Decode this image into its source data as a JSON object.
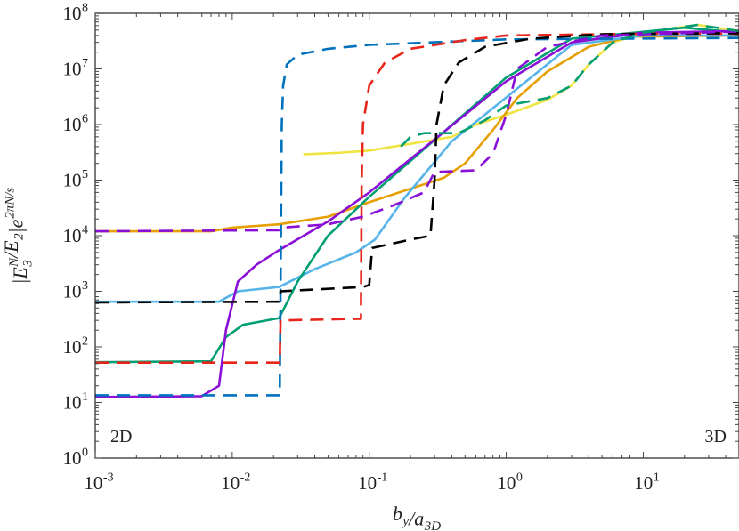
{
  "chart_data": {
    "type": "line",
    "xscale": "log",
    "yscale": "log",
    "xlim": [
      0.001,
      50
    ],
    "ylim": [
      1,
      100000000
    ],
    "grid": false,
    "xlabel": "b_y/a_3D",
    "ylabel": "|E_3^N/E_2|e^{2πN/s}",
    "x_ticks": [
      "10^-3",
      "10^-2",
      "10^-1",
      "10^0",
      "10^1"
    ],
    "y_ticks": [
      "10^0",
      "10^1",
      "10^2",
      "10^3",
      "10^4",
      "10^5",
      "10^6",
      "10^7",
      "10^8"
    ],
    "annotations": [
      "2D",
      "3D"
    ],
    "series": [
      {
        "color": "#F0E442",
        "style": "solid",
        "points": [
          [
            0.033,
            290000.0
          ],
          [
            0.06,
            310000.0
          ],
          [
            0.1,
            340000.0
          ],
          [
            0.2,
            450000.0
          ],
          [
            0.4,
            600000.0
          ],
          [
            0.6,
            1000000.0
          ],
          [
            1,
            1500000.0
          ],
          [
            2,
            2800000.0
          ],
          [
            3,
            5000000.0
          ],
          [
            4,
            12000000.0
          ],
          [
            6,
            30000000.0
          ],
          [
            10,
            45000000.0
          ],
          [
            25,
            62000000.0
          ],
          [
            50,
            48000000.0
          ]
        ]
      },
      {
        "color": "#E69F00",
        "style": "solid",
        "points": [
          [
            0.001,
            12000.0
          ],
          [
            0.007,
            12000.0
          ],
          [
            0.01,
            14000.0
          ],
          [
            0.022,
            16000.0
          ],
          [
            0.05,
            22000.0
          ],
          [
            0.1,
            40000.0
          ],
          [
            0.2,
            70000.0
          ],
          [
            0.35,
            110000.0
          ],
          [
            0.5,
            200000.0
          ],
          [
            0.8,
            800000.0
          ],
          [
            1.2,
            3000000.0
          ],
          [
            2,
            9000000.0
          ],
          [
            4,
            25000000.0
          ],
          [
            8,
            38000000.0
          ],
          [
            50,
            40000000.0
          ]
        ]
      },
      {
        "color": "#56B4E9",
        "style": "solid",
        "points": [
          [
            0.001,
            650
          ],
          [
            0.008,
            650
          ],
          [
            0.011,
            1000
          ],
          [
            0.022,
            1200
          ],
          [
            0.04,
            2500
          ],
          [
            0.08,
            5000
          ],
          [
            0.11,
            8500
          ],
          [
            0.18,
            47000.0
          ],
          [
            0.4,
            500000.0
          ],
          [
            1.4,
            6000000.0
          ],
          [
            3,
            27000000.0
          ],
          [
            10,
            40000000.0
          ],
          [
            50,
            40000000.0
          ]
        ]
      },
      {
        "color": "#009E73",
        "style": "solid",
        "points": [
          [
            0.001,
            53
          ],
          [
            0.007,
            55
          ],
          [
            0.009,
            150
          ],
          [
            0.012,
            250
          ],
          [
            0.022,
            330
          ],
          [
            0.03,
            1500
          ],
          [
            0.05,
            10000.0
          ],
          [
            0.1,
            50000.0
          ],
          [
            1,
            7000000.0
          ],
          [
            3,
            35000000.0
          ],
          [
            20,
            55000000.0
          ],
          [
            50,
            45000000.0
          ]
        ]
      },
      {
        "color": "#8A0FD6",
        "style": "solid",
        "points": [
          [
            0.001,
            12.5
          ],
          [
            0.006,
            13
          ],
          [
            0.008,
            20
          ],
          [
            0.009,
            200
          ],
          [
            0.011,
            1500
          ],
          [
            0.015,
            3000
          ],
          [
            0.022,
            5500
          ],
          [
            0.05,
            18000.0
          ],
          [
            0.1,
            60000.0
          ],
          [
            1,
            6000000.0
          ],
          [
            3,
            30000000.0
          ],
          [
            10,
            45000000.0
          ],
          [
            50,
            48000000.0
          ]
        ]
      },
      {
        "color": "#0072BD",
        "style": "dashed",
        "points": [
          [
            0.001,
            13.5
          ],
          [
            0.0222,
            13.5
          ],
          [
            0.0225,
            1000
          ],
          [
            0.023,
            1000000.0
          ],
          [
            0.0235,
            5000000.0
          ],
          [
            0.025,
            12000000.0
          ],
          [
            0.03,
            18000000.0
          ],
          [
            0.05,
            23000000.0
          ],
          [
            0.1,
            27000000.0
          ],
          [
            1,
            34000000.0
          ],
          [
            50,
            36000000.0
          ]
        ]
      },
      {
        "color": "#E8251A",
        "style": "dashed",
        "points": [
          [
            0.001,
            52
          ],
          [
            0.0222,
            52
          ],
          [
            0.0225,
            300
          ],
          [
            0.087,
            320
          ],
          [
            0.088,
            100000.0
          ],
          [
            0.09,
            1000000.0
          ],
          [
            0.1,
            5000000.0
          ],
          [
            0.13,
            13000000.0
          ],
          [
            0.2,
            23000000.0
          ],
          [
            0.5,
            33000000.0
          ],
          [
            1,
            40000000.0
          ],
          [
            10,
            43000000.0
          ],
          [
            50,
            43000000.0
          ]
        ]
      },
      {
        "color": "#000000",
        "style": "dashed",
        "points": [
          [
            0.001,
            630
          ],
          [
            0.022,
            650
          ],
          [
            0.0225,
            1000
          ],
          [
            0.09,
            1200
          ],
          [
            0.1,
            1300
          ],
          [
            0.105,
            6000
          ],
          [
            0.2,
            8500
          ],
          [
            0.28,
            10000.0
          ],
          [
            0.3,
            100000.0
          ],
          [
            0.31,
            1000000.0
          ],
          [
            0.35,
            5000000.0
          ],
          [
            0.45,
            13000000.0
          ],
          [
            0.7,
            25000000.0
          ],
          [
            1.5,
            35000000.0
          ],
          [
            5,
            42000000.0
          ],
          [
            50,
            44000000.0
          ]
        ]
      },
      {
        "color": "#8A0FD6",
        "style": "dashed",
        "points": [
          [
            0.001,
            12000.0
          ],
          [
            0.022,
            12500.0
          ],
          [
            0.023,
            14000.0
          ],
          [
            0.05,
            16000.0
          ],
          [
            0.09,
            22000.0
          ],
          [
            0.15,
            35000.0
          ],
          [
            0.25,
            60000.0
          ],
          [
            0.3,
            140000.0
          ],
          [
            0.6,
            150000.0
          ],
          [
            0.8,
            300000.0
          ],
          [
            1,
            1500000.0
          ],
          [
            1.2,
            10000000.0
          ],
          [
            2,
            25000000.0
          ],
          [
            5,
            40000000.0
          ],
          [
            50,
            47000000.0
          ]
        ]
      },
      {
        "color": "#009E73",
        "style": "dashed",
        "points": [
          [
            0.17,
            400000.0
          ],
          [
            0.2,
            600000.0
          ],
          [
            0.25,
            700000.0
          ],
          [
            0.45,
            700000.0
          ],
          [
            0.7,
            1200000.0
          ],
          [
            1,
            2200000.0
          ],
          [
            2,
            3000000.0
          ],
          [
            3,
            5000000.0
          ],
          [
            4,
            12000000.0
          ],
          [
            6,
            30000000.0
          ],
          [
            10,
            45000000.0
          ],
          [
            25,
            62000000.0
          ],
          [
            50,
            48000000.0
          ]
        ]
      }
    ]
  }
}
